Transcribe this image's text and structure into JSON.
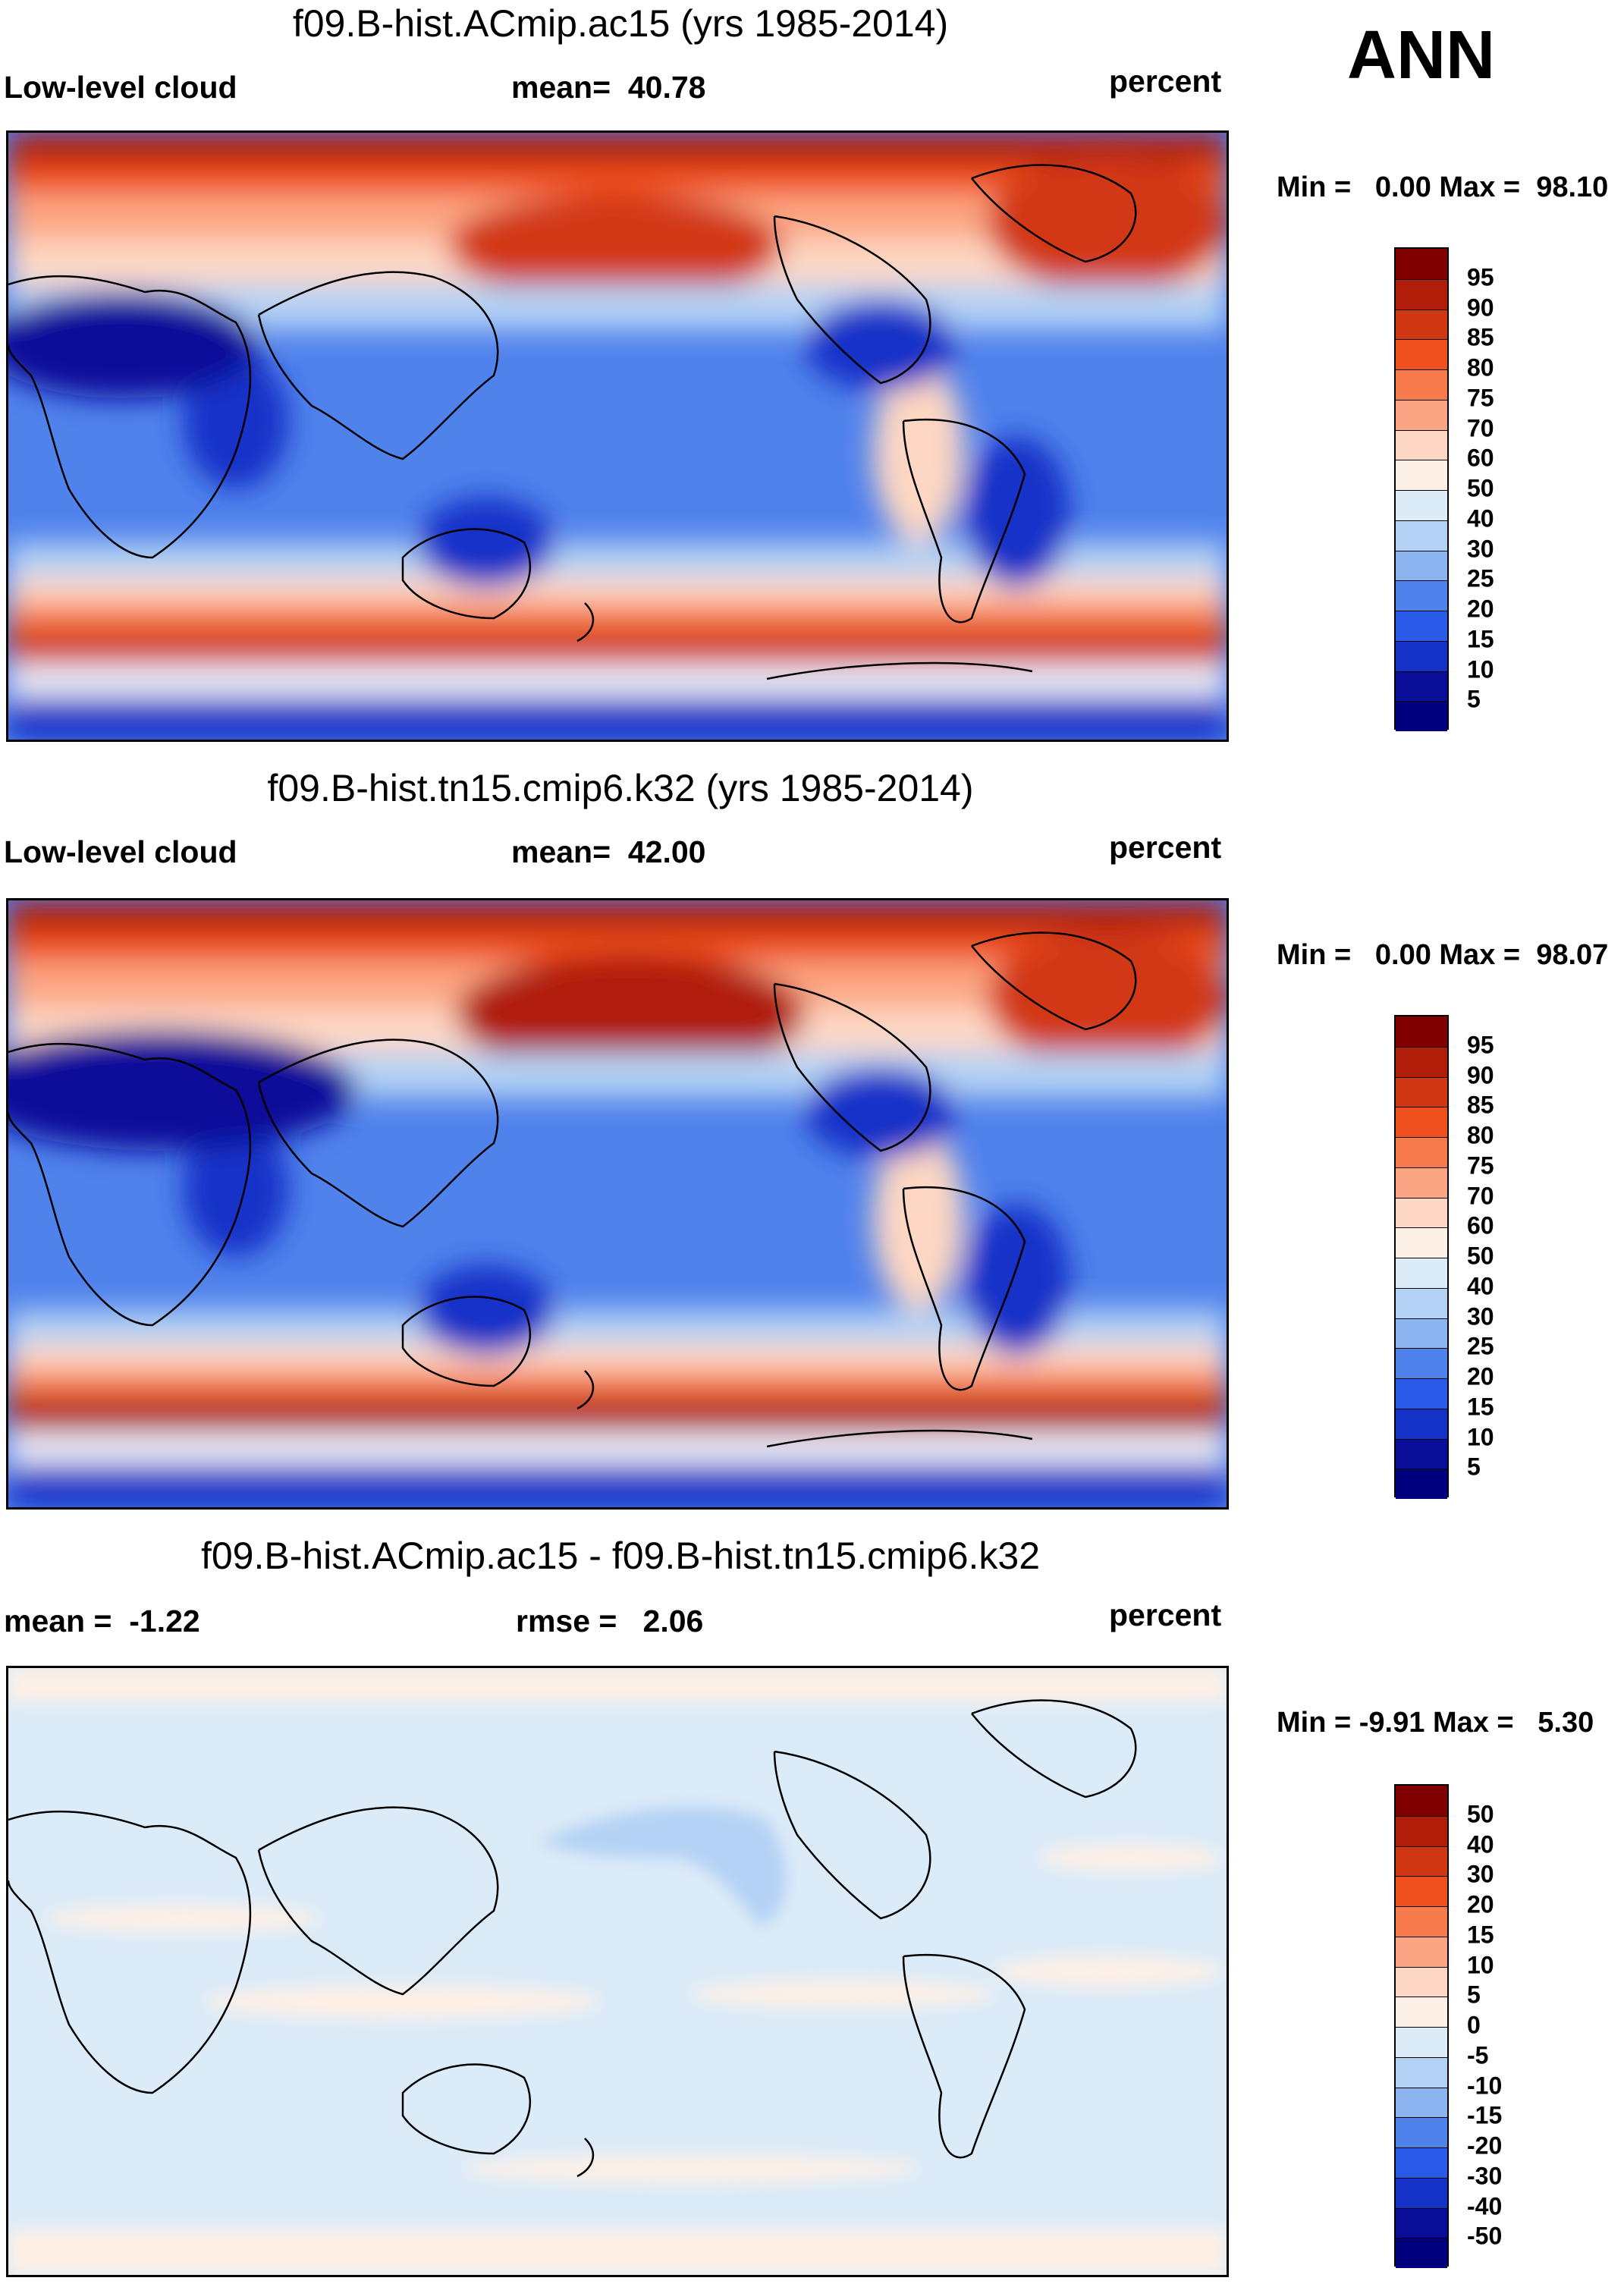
{
  "page": {
    "ann_label": "ANN",
    "units": "percent"
  },
  "chart_data": [
    {
      "type": "heatmap",
      "title": "f09.B-hist.ACmip.ac15 (yrs 1985-2014)",
      "variable": "Low-level cloud",
      "stat_left_label": "mean=",
      "stat_left_value": "40.78",
      "units": "percent",
      "min_label": "Min =",
      "min_value": "0.00",
      "max_label": "Max =",
      "max_value": "98.10",
      "colorbar_levels": [
        "95",
        "90",
        "85",
        "80",
        "75",
        "70",
        "60",
        "50",
        "40",
        "30",
        "25",
        "20",
        "15",
        "10",
        "5"
      ],
      "colorbar_colors": [
        "#800000",
        "#b01e0a",
        "#d23713",
        "#f0501e",
        "#f77a4c",
        "#fca582",
        "#fdd7c3",
        "#fdf0e6",
        "#dcebf8",
        "#b4d2f4",
        "#8cb4f0",
        "#5082ec",
        "#2a5ae8",
        "#1432c8",
        "#0a0f9a",
        "#00007f"
      ]
    },
    {
      "type": "heatmap",
      "title": "f09.B-hist.tn15.cmip6.k32 (yrs 1985-2014)",
      "variable": "Low-level cloud",
      "stat_left_label": "mean=",
      "stat_left_value": "42.00",
      "units": "percent",
      "min_label": "Min =",
      "min_value": "0.00",
      "max_label": "Max =",
      "max_value": "98.07",
      "colorbar_levels": [
        "95",
        "90",
        "85",
        "80",
        "75",
        "70",
        "60",
        "50",
        "40",
        "30",
        "25",
        "20",
        "15",
        "10",
        "5"
      ],
      "colorbar_colors": [
        "#800000",
        "#b01e0a",
        "#d23713",
        "#f0501e",
        "#f77a4c",
        "#fca582",
        "#fdd7c3",
        "#fdf0e6",
        "#dcebf8",
        "#b4d2f4",
        "#8cb4f0",
        "#5082ec",
        "#2a5ae8",
        "#1432c8",
        "#0a0f9a",
        "#00007f"
      ]
    },
    {
      "type": "heatmap",
      "title": "f09.B-hist.ACmip.ac15 - f09.B-hist.tn15.cmip6.k32",
      "stat_left_label": "mean =",
      "stat_left_value": "-1.22",
      "stat_mid_label": "rmse =",
      "stat_mid_value": "2.06",
      "units": "percent",
      "min_label": "Min =",
      "min_value": "-9.91",
      "max_label": "Max =",
      "max_value": "5.30",
      "colorbar_levels": [
        "50",
        "40",
        "30",
        "20",
        "15",
        "10",
        "5",
        "0",
        "-5",
        "-10",
        "-15",
        "-20",
        "-30",
        "-40",
        "-50"
      ],
      "colorbar_colors": [
        "#800000",
        "#b01e0a",
        "#d23713",
        "#f0501e",
        "#f77a4c",
        "#fca582",
        "#fdd7c3",
        "#fdf0e6",
        "#dcebf8",
        "#b4d2f4",
        "#8cb4f0",
        "#5082ec",
        "#2a5ae8",
        "#1432c8",
        "#0a0f9a",
        "#00007f"
      ]
    }
  ]
}
